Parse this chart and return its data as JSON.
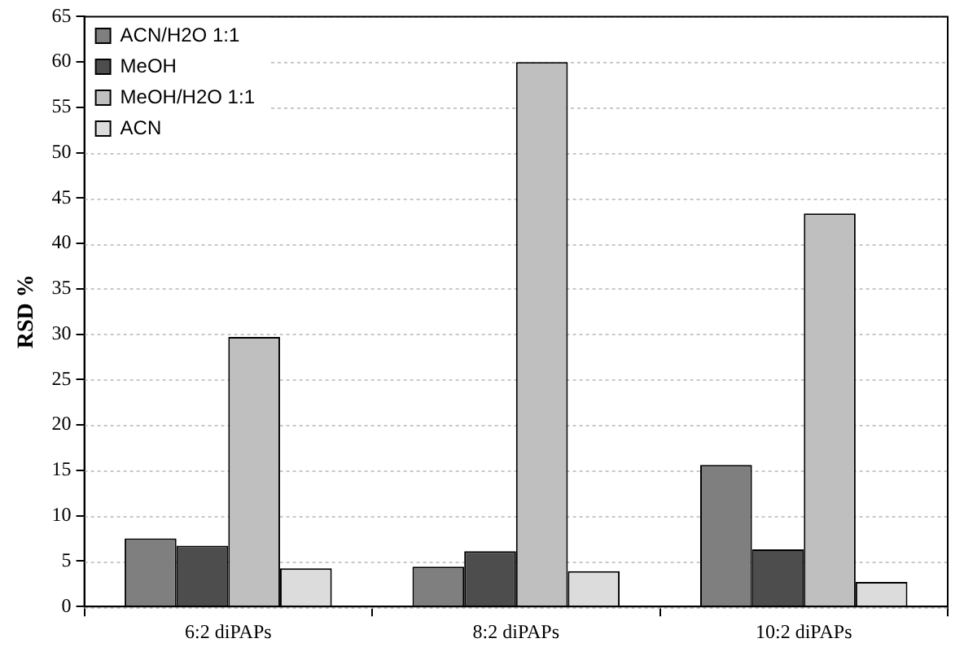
{
  "chart_data": {
    "type": "bar",
    "ylabel": "RSD %",
    "categories": [
      "6:2 diPAPs",
      "8:2 diPAPs",
      "10:2 diPAPs"
    ],
    "series": [
      {
        "name": "ACN/H2O 1:1",
        "color": "#7f7f7f",
        "values": [
          7.5,
          4.4,
          15.6
        ]
      },
      {
        "name": "MeOH",
        "color": "#4d4d4d",
        "values": [
          6.7,
          6.1,
          6.3
        ]
      },
      {
        "name": "MeOH/H2O 1:1",
        "color": "#bfbfbf",
        "values": [
          29.7,
          60.0,
          43.3
        ]
      },
      {
        "name": "ACN",
        "color": "#dcdcdc",
        "values": [
          4.2,
          3.9,
          2.7
        ]
      }
    ],
    "ylim": [
      0,
      65
    ],
    "yticks": [
      0,
      5,
      10,
      15,
      20,
      25,
      30,
      35,
      40,
      45,
      50,
      55,
      60,
      65
    ],
    "grid": "y",
    "legend": "top left"
  }
}
